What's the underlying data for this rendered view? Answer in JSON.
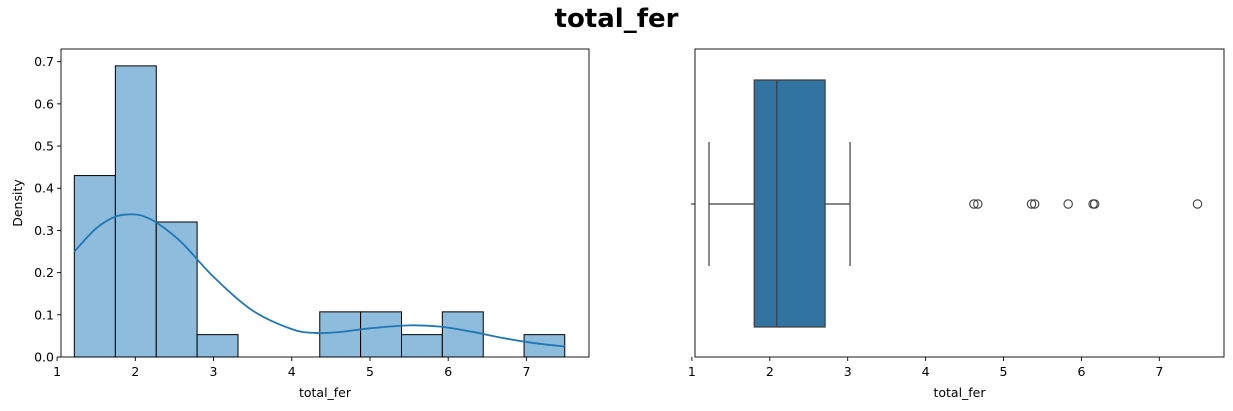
{
  "figure": {
    "suptitle": "total_fer"
  },
  "chart_data": [
    {
      "type": "histogram",
      "xlabel": "total_fer",
      "ylabel": "Density",
      "xlim": [
        1.05,
        7.8
      ],
      "ylim": [
        0,
        0.73
      ],
      "xticks": [
        1,
        2,
        3,
        4,
        5,
        6,
        7
      ],
      "yticks": [
        0.0,
        0.1,
        0.2,
        0.3,
        0.4,
        0.5,
        0.6,
        0.7
      ],
      "bins": [
        {
          "x0": 1.22,
          "x1": 1.745,
          "density": 0.43
        },
        {
          "x0": 1.745,
          "x1": 2.268,
          "density": 0.69
        },
        {
          "x0": 2.268,
          "x1": 2.79,
          "density": 0.32
        },
        {
          "x0": 2.79,
          "x1": 3.313,
          "density": 0.053
        },
        {
          "x0": 3.313,
          "x1": 3.835,
          "density": 0.0
        },
        {
          "x0": 3.835,
          "x1": 4.358,
          "density": 0.0
        },
        {
          "x0": 4.358,
          "x1": 4.88,
          "density": 0.107
        },
        {
          "x0": 4.88,
          "x1": 5.403,
          "density": 0.107
        },
        {
          "x0": 5.403,
          "x1": 5.925,
          "density": 0.053
        },
        {
          "x0": 5.925,
          "x1": 6.448,
          "density": 0.107
        },
        {
          "x0": 6.448,
          "x1": 6.97,
          "density": 0.0
        },
        {
          "x0": 6.97,
          "x1": 7.49,
          "density": 0.053
        }
      ],
      "kde": {
        "x": [
          1.22,
          1.5,
          1.75,
          1.95,
          2.1,
          2.3,
          2.6,
          3.0,
          3.5,
          4.0,
          4.3,
          4.6,
          5.0,
          5.5,
          5.9,
          6.3,
          6.7,
          7.1,
          7.49
        ],
        "y": [
          0.25,
          0.305,
          0.333,
          0.338,
          0.334,
          0.315,
          0.27,
          0.19,
          0.11,
          0.066,
          0.057,
          0.059,
          0.068,
          0.075,
          0.072,
          0.06,
          0.045,
          0.033,
          0.025
        ]
      },
      "colors": {
        "bar_fill": "#8ebcdc",
        "bar_edge": "#000000",
        "kde_line": "#1f77b4"
      }
    },
    {
      "type": "boxplot",
      "xlabel": "total_fer",
      "xlim": [
        1.04,
        7.83
      ],
      "xticks": [
        1,
        2,
        3,
        4,
        5,
        6,
        7
      ],
      "stats": {
        "whislo": 1.22,
        "q1": 1.8,
        "median": 2.09,
        "q3": 2.71,
        "whishi": 3.03
      },
      "outliers": [
        4.62,
        4.67,
        5.36,
        5.4,
        5.83,
        6.15,
        6.17,
        7.49
      ],
      "colors": {
        "box_fill": "#3274a1",
        "line": "#3d3d3d"
      }
    }
  ]
}
